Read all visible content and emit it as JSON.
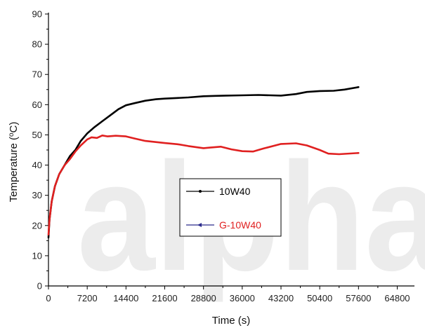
{
  "watermark": "alpha",
  "chart_data": {
    "type": "line",
    "title": "",
    "xlabel": "Time (s)",
    "ylabel_main": "Temperature (",
    "ylabel_sup": "o",
    "ylabel_end": "C)",
    "xlim": [
      0,
      68000
    ],
    "ylim": [
      0,
      90
    ],
    "xticks": [
      0,
      7200,
      14400,
      21600,
      28800,
      36000,
      43200,
      50400,
      57600,
      64800
    ],
    "yticks": [
      0,
      10,
      20,
      30,
      40,
      50,
      60,
      70,
      80,
      90
    ],
    "legend_position": "center",
    "series": [
      {
        "name": "10W40",
        "color": "#000000",
        "x": [
          0,
          200,
          600,
          1200,
          2000,
          3000,
          4000,
          5000,
          6000,
          7200,
          8500,
          10000,
          11500,
          13000,
          14400,
          16000,
          18000,
          20000,
          21600,
          24000,
          26000,
          28800,
          31000,
          33000,
          36000,
          39000,
          43200,
          46000,
          48000,
          50400,
          53000,
          55000,
          57600
        ],
        "y": [
          16,
          22,
          28,
          33,
          37,
          40,
          43,
          45,
          48,
          50.5,
          52.5,
          54.5,
          56.5,
          58.5,
          59.8,
          60.5,
          61.3,
          61.8,
          62.0,
          62.2,
          62.4,
          62.8,
          62.9,
          63.0,
          63.1,
          63.2,
          63.0,
          63.5,
          64.2,
          64.5,
          64.6,
          65.0,
          65.8
        ]
      },
      {
        "name": "G-10W40",
        "color": "#e02020",
        "x": [
          0,
          200,
          600,
          1200,
          2000,
          3000,
          4000,
          5000,
          6000,
          7200,
          8000,
          9000,
          10000,
          11000,
          12500,
          14400,
          16000,
          18000,
          21600,
          24000,
          26000,
          28800,
          30000,
          32000,
          34000,
          36000,
          38000,
          40000,
          43200,
          46000,
          48000,
          50400,
          52000,
          54000,
          57600
        ],
        "y": [
          17,
          22,
          28,
          33,
          37,
          40,
          42,
          44.5,
          46.5,
          48.5,
          49.2,
          49.0,
          49.8,
          49.5,
          49.7,
          49.5,
          48.8,
          48.0,
          47.3,
          46.9,
          46.3,
          45.6,
          45.8,
          46.1,
          45.2,
          44.6,
          44.5,
          45.5,
          47.0,
          47.2,
          46.5,
          45.0,
          43.8,
          43.6,
          44.0
        ]
      }
    ]
  }
}
